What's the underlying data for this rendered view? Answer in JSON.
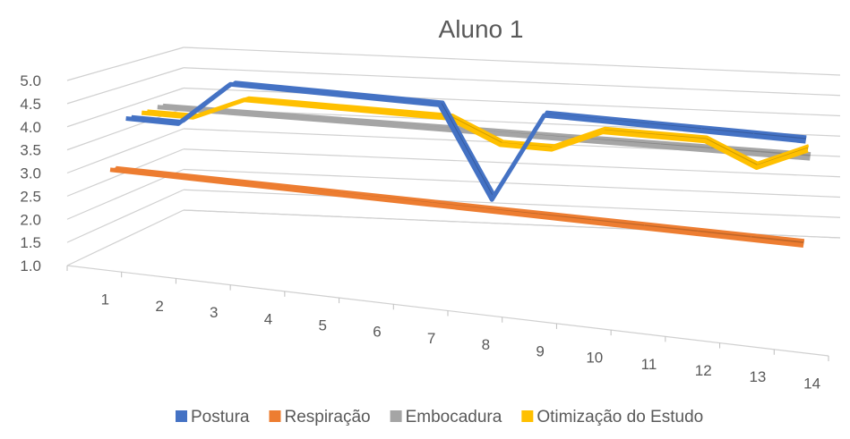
{
  "chart_data": {
    "type": "line",
    "title": "Aluno 1",
    "xlabel": "",
    "ylabel": "",
    "categories": [
      "1",
      "2",
      "3",
      "4",
      "5",
      "6",
      "7",
      "8",
      "9",
      "10",
      "11",
      "12",
      "13",
      "14"
    ],
    "y_ticks": [
      "1.0",
      "1.5",
      "2.0",
      "2.5",
      "3.0",
      "3.5",
      "4.0",
      "4.5",
      "5.0"
    ],
    "ylim": [
      1.0,
      5.0
    ],
    "grid": true,
    "legend_position": "bottom",
    "series": [
      {
        "name": "Postura",
        "color": "#4472C4",
        "values": [
          4,
          4,
          5,
          5,
          5,
          5,
          5,
          3,
          5,
          5,
          5,
          5,
          5,
          5
        ]
      },
      {
        "name": "Respiração",
        "color": "#ED7D31",
        "values": [
          3,
          3,
          3,
          3,
          3,
          3,
          3,
          3,
          3,
          3,
          3,
          3,
          3,
          3
        ]
      },
      {
        "name": "Embocadura",
        "color": "#A5A5A5",
        "values": [
          4,
          4,
          4,
          4,
          4,
          4,
          4,
          4,
          4,
          4,
          4,
          4,
          4,
          4
        ]
      },
      {
        "name": "Otimização do Estudo",
        "color": "#FFC000",
        "values": [
          4,
          4,
          4.5,
          4.5,
          4.5,
          4.5,
          4.5,
          4,
          4,
          4.5,
          4.5,
          4.5,
          4,
          4.5
        ]
      }
    ]
  }
}
